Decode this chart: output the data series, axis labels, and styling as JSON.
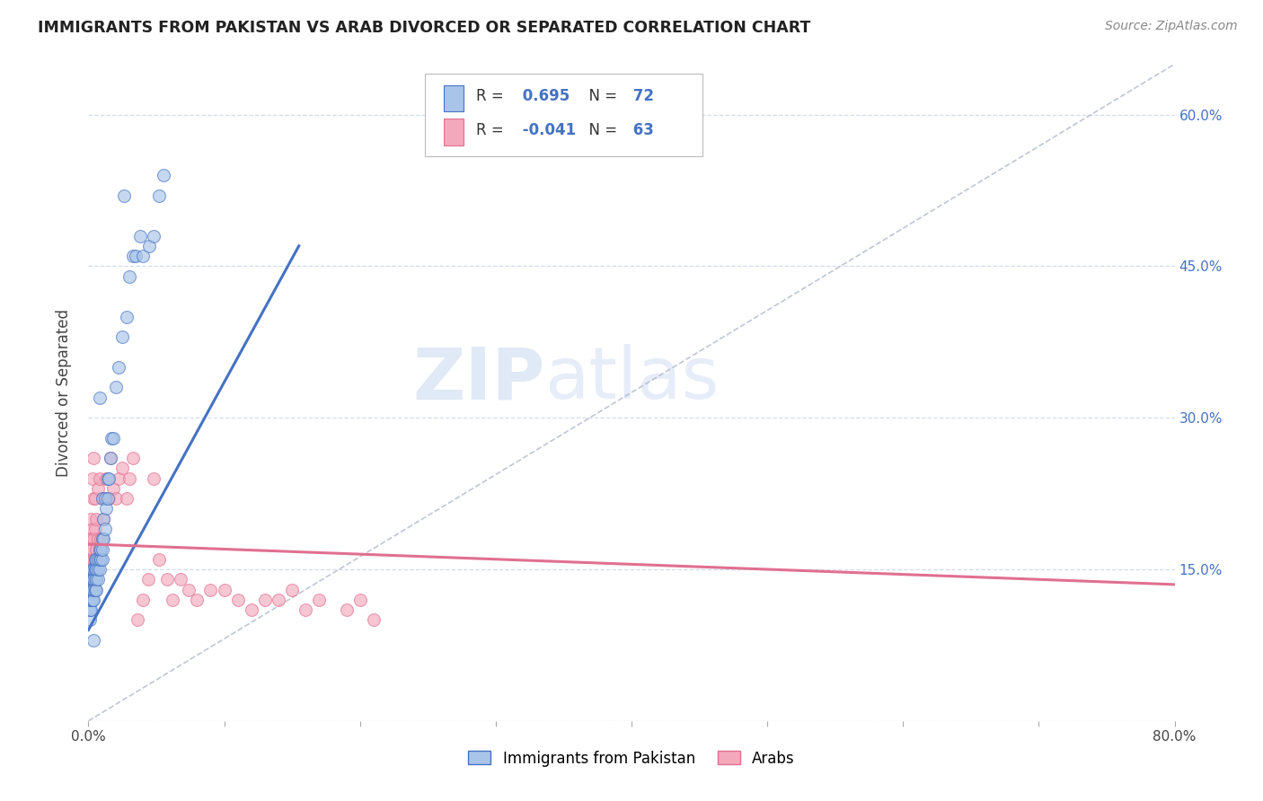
{
  "title": "IMMIGRANTS FROM PAKISTAN VS ARAB DIVORCED OR SEPARATED CORRELATION CHART",
  "source": "Source: ZipAtlas.com",
  "ylabel": "Divorced or Separated",
  "r1": 0.695,
  "n1": 72,
  "r2": -0.041,
  "n2": 63,
  "legend_label1": "Immigrants from Pakistan",
  "legend_label2": "Arabs",
  "color1": "#a8c4e8",
  "color2": "#f4a8bc",
  "line_color1": "#4472c4",
  "line_color2": "#e07090",
  "diagonal_color": "#b0b8c8",
  "background_color": "#ffffff",
  "grid_color": "#c8d4e8",
  "xmin": 0.0,
  "xmax": 0.8,
  "ymin": 0.0,
  "ymax": 0.65,
  "y_ticks": [
    0.0,
    0.15,
    0.3,
    0.45,
    0.6
  ],
  "y_tick_labels_right": [
    "",
    "15.0%",
    "30.0%",
    "45.0%",
    "60.0%"
  ],
  "watermark_zip": "ZIP",
  "watermark_atlas": "atlas",
  "pakistan_x": [
    0.001,
    0.001,
    0.001,
    0.001,
    0.001,
    0.001,
    0.002,
    0.002,
    0.002,
    0.002,
    0.002,
    0.002,
    0.002,
    0.003,
    0.003,
    0.003,
    0.003,
    0.003,
    0.003,
    0.003,
    0.003,
    0.004,
    0.004,
    0.004,
    0.004,
    0.004,
    0.005,
    0.005,
    0.005,
    0.005,
    0.005,
    0.005,
    0.006,
    0.006,
    0.006,
    0.006,
    0.007,
    0.007,
    0.007,
    0.008,
    0.008,
    0.008,
    0.009,
    0.009,
    0.01,
    0.01,
    0.01,
    0.01,
    0.011,
    0.011,
    0.012,
    0.012,
    0.013,
    0.014,
    0.014,
    0.015,
    0.016,
    0.017,
    0.018,
    0.02,
    0.022,
    0.025,
    0.028,
    0.03,
    0.033,
    0.035,
    0.038,
    0.04,
    0.045,
    0.048,
    0.052,
    0.055
  ],
  "pakistan_y": [
    0.1,
    0.11,
    0.11,
    0.12,
    0.12,
    0.13,
    0.11,
    0.12,
    0.12,
    0.13,
    0.13,
    0.13,
    0.14,
    0.12,
    0.12,
    0.13,
    0.13,
    0.14,
    0.14,
    0.15,
    0.15,
    0.12,
    0.13,
    0.14,
    0.14,
    0.15,
    0.13,
    0.13,
    0.14,
    0.15,
    0.15,
    0.16,
    0.13,
    0.14,
    0.15,
    0.16,
    0.14,
    0.15,
    0.16,
    0.15,
    0.16,
    0.17,
    0.16,
    0.17,
    0.16,
    0.17,
    0.18,
    0.22,
    0.18,
    0.2,
    0.19,
    0.22,
    0.21,
    0.22,
    0.24,
    0.24,
    0.26,
    0.28,
    0.28,
    0.33,
    0.35,
    0.38,
    0.4,
    0.44,
    0.46,
    0.46,
    0.48,
    0.46,
    0.47,
    0.48,
    0.52,
    0.54
  ],
  "pakistan_outlier_x": [
    0.026
  ],
  "pakistan_outlier_y": [
    0.52
  ],
  "pakistan_outlier2_x": [
    0.008
  ],
  "pakistan_outlier2_y": [
    0.32
  ],
  "pakistan_outlier3_x": [
    0.004
  ],
  "pakistan_outlier3_y": [
    0.08
  ],
  "arab_x": [
    0.001,
    0.001,
    0.001,
    0.001,
    0.002,
    0.002,
    0.002,
    0.002,
    0.002,
    0.003,
    0.003,
    0.003,
    0.003,
    0.004,
    0.004,
    0.004,
    0.004,
    0.005,
    0.005,
    0.005,
    0.006,
    0.006,
    0.007,
    0.007,
    0.008,
    0.008,
    0.009,
    0.01,
    0.01,
    0.011,
    0.012,
    0.013,
    0.015,
    0.016,
    0.018,
    0.02,
    0.022,
    0.025,
    0.028,
    0.03,
    0.033,
    0.036,
    0.04,
    0.044,
    0.048,
    0.052,
    0.058,
    0.062,
    0.068,
    0.074,
    0.08,
    0.09,
    0.1,
    0.11,
    0.12,
    0.13,
    0.14,
    0.15,
    0.16,
    0.17,
    0.19,
    0.2,
    0.21
  ],
  "arab_y": [
    0.14,
    0.15,
    0.16,
    0.18,
    0.15,
    0.16,
    0.17,
    0.18,
    0.2,
    0.15,
    0.17,
    0.19,
    0.24,
    0.16,
    0.18,
    0.22,
    0.26,
    0.16,
    0.19,
    0.22,
    0.17,
    0.2,
    0.18,
    0.23,
    0.17,
    0.24,
    0.18,
    0.18,
    0.22,
    0.2,
    0.22,
    0.24,
    0.22,
    0.26,
    0.23,
    0.22,
    0.24,
    0.25,
    0.22,
    0.24,
    0.26,
    0.1,
    0.12,
    0.14,
    0.24,
    0.16,
    0.14,
    0.12,
    0.14,
    0.13,
    0.12,
    0.13,
    0.13,
    0.12,
    0.11,
    0.12,
    0.12,
    0.13,
    0.11,
    0.12,
    0.11,
    0.12,
    0.1
  ]
}
